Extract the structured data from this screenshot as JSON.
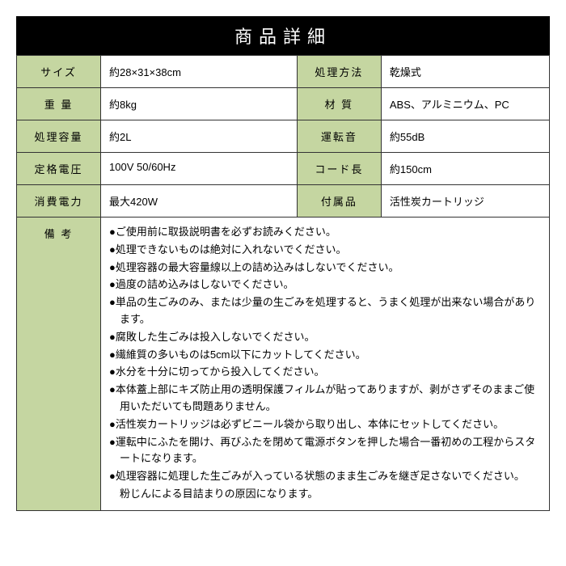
{
  "title": "商品詳細",
  "colors": {
    "title_bg": "#000000",
    "title_text": "#ffffff",
    "label_bg": "#c5d6a1",
    "border": "#333333",
    "value_bg": "#ffffff"
  },
  "typography": {
    "title_fontsize": 22,
    "body_fontsize": 13,
    "title_letter_spacing": 8
  },
  "rows": [
    {
      "label1": "サイズ",
      "value1": "約28×31×38cm",
      "label2": "処理方法",
      "value2": "乾燥式"
    },
    {
      "label1": "重 量",
      "value1": "約8kg",
      "label2": "材 質",
      "value2": "ABS、アルミニウム、PC"
    },
    {
      "label1": "処理容量",
      "value1": "約2L",
      "label2": "運転音",
      "value2": "約55dB"
    },
    {
      "label1": "定格電圧",
      "value1": "100V 50/60Hz",
      "label2": "コード長",
      "value2": "約150cm"
    },
    {
      "label1": "消費電力",
      "value1": "最大420W",
      "label2": "付属品",
      "value2": "活性炭カートリッジ"
    }
  ],
  "notes": {
    "label": "備 考",
    "lines": [
      {
        "type": "bullet",
        "text": "●ご使用前に取扱説明書を必ずお読みください。"
      },
      {
        "type": "bullet",
        "text": "●処理できないものは絶対に入れないでください。"
      },
      {
        "type": "bullet",
        "text": "●処理容器の最大容量線以上の詰め込みはしないでください。"
      },
      {
        "type": "bullet",
        "text": "●過度の詰め込みはしないでください。"
      },
      {
        "type": "bullet",
        "text": "●単品の生ごみのみ、または少量の生ごみを処理すると、うまく処理が出来ない場合があります。"
      },
      {
        "type": "bullet",
        "text": "●腐敗した生ごみは投入しないでください。"
      },
      {
        "type": "bullet",
        "text": "●繊維質の多いものは5cm以下にカットしてください。"
      },
      {
        "type": "bullet",
        "text": "●水分を十分に切ってから投入してください。"
      },
      {
        "type": "bullet",
        "text": "●本体蓋上部にキズ防止用の透明保護フィルムが貼ってありますが、剥がさずそのままご使用いただいても問題ありません。"
      },
      {
        "type": "bullet",
        "text": "●活性炭カートリッジは必ずビニール袋から取り出し、本体にセットしてください。"
      },
      {
        "type": "bullet",
        "text": "●運転中にふたを開け、再びふたを閉めて電源ボタンを押した場合一番初めの工程からスタートになります。"
      },
      {
        "type": "bullet",
        "text": "●処理容器に処理した生ごみが入っている状態のまま生ごみを継ぎ足さないでください。"
      },
      {
        "type": "sub",
        "text": "粉じんによる目詰まりの原因になります。"
      }
    ]
  }
}
